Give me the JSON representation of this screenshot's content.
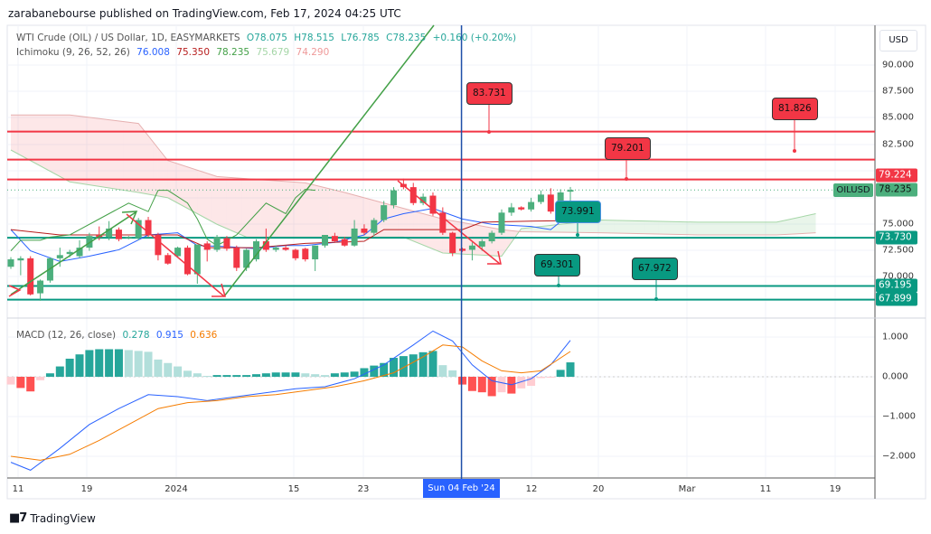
{
  "published": "zarabanebourse published on TradingView.com, Feb 17, 2024 04:25 UTC",
  "symbol": {
    "title": "WTI Crude (OIL) / US Dollar, 1D, EASYMARKETS",
    "open": "O78.075",
    "high": "H78.515",
    "low": "L76.785",
    "close": "C78.235",
    "change": "+0.160 (+0.20%)"
  },
  "ichimoku": {
    "label": "Ichimoku (9, 26, 52, 26)",
    "v1": "76.008",
    "v2": "75.350",
    "v3": "78.235",
    "v4": "75.679",
    "v5": "74.290"
  },
  "macd_legend": {
    "label": "MACD (12, 26, close)",
    "hist": "0.278",
    "macd": "0.915",
    "signal": "0.636"
  },
  "currency": "USD",
  "price_axis": [
    "90.000",
    "87.500",
    "85.000",
    "82.500",
    "75.000",
    "72.500",
    "70.000"
  ],
  "macd_axis": [
    "1.000",
    "0.000",
    "−1.000",
    "−2.000"
  ],
  "price_tags": {
    "r1": "79.224",
    "last": "78.235",
    "s1": "73.730",
    "s2": "69.195",
    "s3": "67.899",
    "symbol": "OILUSD"
  },
  "callouts": {
    "a": "83.731",
    "b": "79.201",
    "c": "81.826",
    "d": "73.991",
    "e": "69.301",
    "f": "67.972"
  },
  "time_axis": [
    "11",
    "19",
    "2024",
    "15",
    "23",
    "12",
    "20",
    "Mar",
    "11",
    "19"
  ],
  "crosshair_date": "Sun 04 Feb '24",
  "brand": "TradingView",
  "colors": {
    "up": "#26a69a",
    "candle_up": "#4caf7d",
    "down": "#f23645",
    "blue": "#2962ff",
    "base": "#b71c1c",
    "lag": "#43a047",
    "orange": "#f57c00",
    "teal": "#089981"
  },
  "chart_data": {
    "type": "candlestick",
    "candles": [
      [
        71.0,
        71.9,
        70.8,
        71.7
      ],
      [
        71.6,
        72.0,
        70.2,
        71.8
      ],
      [
        71.8,
        72.0,
        68.3,
        68.4
      ],
      [
        68.5,
        69.8,
        67.8,
        69.7
      ],
      [
        69.7,
        71.9,
        69.5,
        71.8
      ],
      [
        71.8,
        72.8,
        71.0,
        72.1
      ],
      [
        72.2,
        72.6,
        71.9,
        72.4
      ],
      [
        72.0,
        73.5,
        71.8,
        72.8
      ],
      [
        72.8,
        74.2,
        72.5,
        73.9
      ],
      [
        74.0,
        74.8,
        73.5,
        73.8
      ],
      [
        73.8,
        75.3,
        73.5,
        74.6
      ],
      [
        74.5,
        74.7,
        73.4,
        73.6
      ],
      [
        73.7,
        73.9,
        73.6,
        73.8
      ],
      [
        73.7,
        75.6,
        73.5,
        75.4
      ],
      [
        75.4,
        75.7,
        73.8,
        74.0
      ],
      [
        74.0,
        74.2,
        71.6,
        72.1
      ],
      [
        72.1,
        72.3,
        71.2,
        71.3
      ],
      [
        72.0,
        72.9,
        71.9,
        72.8
      ],
      [
        72.8,
        73.0,
        70.2,
        70.3
      ],
      [
        70.3,
        73.1,
        69.4,
        73.1
      ],
      [
        73.2,
        73.4,
        71.5,
        72.6
      ],
      [
        72.6,
        74.0,
        72.4,
        73.8
      ],
      [
        73.7,
        73.9,
        72.5,
        72.7
      ],
      [
        72.8,
        73.0,
        70.6,
        70.9
      ],
      [
        70.9,
        72.7,
        70.6,
        72.6
      ],
      [
        71.7,
        73.6,
        71.5,
        73.4
      ],
      [
        73.4,
        74.6,
        72.4,
        72.6
      ],
      [
        72.6,
        73.0,
        72.4,
        72.8
      ],
      [
        72.8,
        73.0,
        72.5,
        72.6
      ],
      [
        72.6,
        72.7,
        71.6,
        71.8
      ],
      [
        72.7,
        72.8,
        71.5,
        71.7
      ],
      [
        71.7,
        73.0,
        70.6,
        73.0
      ],
      [
        73.0,
        74.0,
        72.8,
        74.0
      ],
      [
        73.9,
        74.2,
        73.3,
        73.4
      ],
      [
        73.6,
        73.8,
        72.9,
        73.0
      ],
      [
        73.0,
        75.4,
        72.9,
        74.6
      ],
      [
        74.6,
        75.0,
        74.0,
        74.2
      ],
      [
        74.2,
        75.6,
        73.9,
        75.4
      ],
      [
        75.4,
        77.2,
        75.2,
        76.8
      ],
      [
        76.8,
        78.5,
        76.5,
        78.2
      ],
      [
        78.8,
        79.3,
        78.3,
        78.5
      ],
      [
        78.5,
        78.9,
        76.8,
        77.0
      ],
      [
        77.0,
        77.9,
        76.8,
        77.6
      ],
      [
        77.7,
        78.0,
        75.8,
        76.0
      ],
      [
        76.1,
        76.6,
        74.0,
        74.2
      ],
      [
        74.2,
        74.3,
        72.0,
        72.3
      ],
      [
        72.7,
        72.8,
        72.4,
        72.5
      ],
      [
        72.6,
        73.3,
        71.6,
        73.0
      ],
      [
        72.9,
        73.6,
        72.5,
        73.4
      ],
      [
        73.4,
        74.4,
        73.2,
        74.2
      ],
      [
        74.2,
        76.4,
        74.0,
        76.1
      ],
      [
        76.1,
        77.0,
        75.8,
        76.6
      ],
      [
        76.6,
        76.7,
        76.3,
        76.4
      ],
      [
        76.4,
        77.5,
        76.2,
        77.1
      ],
      [
        77.1,
        78.2,
        76.9,
        77.8
      ],
      [
        77.8,
        78.4,
        76.0,
        76.2
      ],
      [
        76.1,
        78.3,
        75.9,
        78.0
      ],
      [
        78.075,
        78.515,
        76.785,
        78.235
      ]
    ],
    "ichimoku_cloud": [
      [
        0,
        82.0,
        85.3
      ],
      [
        6,
        79.0,
        85.3
      ],
      [
        13,
        78.0,
        84.5
      ],
      [
        16,
        77.5,
        81.0
      ],
      [
        21,
        75.0,
        79.5
      ],
      [
        24,
        73.8,
        79.3
      ],
      [
        30,
        73.8,
        78.9
      ],
      [
        34,
        73.8,
        78.0
      ],
      [
        40,
        73.8,
        76.5
      ],
      [
        44,
        72.3,
        75.5
      ],
      [
        50,
        72.0,
        74.5
      ],
      [
        52,
        74.6,
        74.3
      ],
      [
        60,
        75.4,
        74.2
      ],
      [
        70,
        75.2,
        74.0
      ],
      [
        78,
        75.2,
        74.0
      ],
      [
        82,
        76.0,
        74.2
      ]
    ],
    "conversion": [
      [
        0,
        74.5
      ],
      [
        2,
        72.5
      ],
      [
        5,
        71.5
      ],
      [
        8,
        72.0
      ],
      [
        11,
        72.6
      ],
      [
        14,
        74.0
      ],
      [
        17,
        74.2
      ],
      [
        19,
        73.0
      ],
      [
        22,
        72.9
      ],
      [
        25,
        72.7
      ],
      [
        28,
        73.0
      ],
      [
        30,
        73.0
      ],
      [
        33,
        73.3
      ],
      [
        36,
        74.0
      ],
      [
        38,
        75.5
      ],
      [
        40,
        76.0
      ],
      [
        43,
        76.5
      ],
      [
        46,
        75.5
      ],
      [
        49,
        75.0
      ],
      [
        53,
        74.8
      ],
      [
        55,
        74.5
      ],
      [
        57,
        76.0
      ]
    ],
    "base": [
      [
        0,
        74.5
      ],
      [
        5,
        74.0
      ],
      [
        17,
        74.0
      ],
      [
        20,
        72.8
      ],
      [
        25,
        72.8
      ],
      [
        30,
        73.2
      ],
      [
        36,
        73.4
      ],
      [
        38,
        74.5
      ],
      [
        46,
        74.5
      ],
      [
        48,
        75.2
      ],
      [
        53,
        75.3
      ],
      [
        57,
        75.35
      ]
    ],
    "lagging": [
      [
        0,
        72.5
      ],
      [
        1,
        73.5
      ],
      [
        3,
        73.5
      ],
      [
        4,
        73.8
      ],
      [
        6,
        74.0
      ],
      [
        9,
        75.5
      ],
      [
        12,
        77.0
      ],
      [
        14,
        76.2
      ],
      [
        15,
        78.2
      ],
      [
        16,
        78.2
      ],
      [
        18,
        77.0
      ],
      [
        19,
        75.5
      ],
      [
        20,
        73.6
      ],
      [
        21,
        73.0
      ],
      [
        23,
        74.0
      ],
      [
        25,
        76.0
      ],
      [
        26,
        77.0
      ],
      [
        28,
        76.0
      ],
      [
        29,
        77.5
      ],
      [
        30,
        78.3
      ],
      [
        31,
        78.2
      ]
    ],
    "macd": [
      [
        0,
        -2.15
      ],
      [
        2,
        -2.35
      ],
      [
        5,
        -1.8
      ],
      [
        8,
        -1.2
      ],
      [
        11,
        -0.8
      ],
      [
        14,
        -0.45
      ],
      [
        17,
        -0.5
      ],
      [
        20,
        -0.6
      ],
      [
        23,
        -0.5
      ],
      [
        26,
        -0.4
      ],
      [
        29,
        -0.3
      ],
      [
        32,
        -0.25
      ],
      [
        35,
        -0.05
      ],
      [
        38,
        0.3
      ],
      [
        41,
        0.8
      ],
      [
        43,
        1.15
      ],
      [
        45,
        0.9
      ],
      [
        47,
        0.3
      ],
      [
        49,
        -0.1
      ],
      [
        51,
        -0.2
      ],
      [
        53,
        -0.05
      ],
      [
        55,
        0.3
      ],
      [
        57,
        0.915
      ]
    ],
    "signal": [
      [
        0,
        -2.0
      ],
      [
        3,
        -2.1
      ],
      [
        6,
        -1.95
      ],
      [
        9,
        -1.6
      ],
      [
        12,
        -1.2
      ],
      [
        15,
        -0.8
      ],
      [
        18,
        -0.65
      ],
      [
        21,
        -0.6
      ],
      [
        24,
        -0.5
      ],
      [
        27,
        -0.45
      ],
      [
        30,
        -0.35
      ],
      [
        33,
        -0.25
      ],
      [
        36,
        -0.1
      ],
      [
        39,
        0.1
      ],
      [
        42,
        0.5
      ],
      [
        44,
        0.8
      ],
      [
        46,
        0.75
      ],
      [
        48,
        0.4
      ],
      [
        50,
        0.15
      ],
      [
        52,
        0.1
      ],
      [
        54,
        0.15
      ],
      [
        57,
        0.636
      ]
    ],
    "levels": {
      "resistance": [
        83.731,
        81.1,
        79.224
      ],
      "support": [
        73.73,
        69.195,
        67.899
      ]
    },
    "crosshair_index": 46,
    "ylim": [
      66.5,
      92
    ],
    "macd_ylim": [
      -2.5,
      1.3
    ]
  }
}
